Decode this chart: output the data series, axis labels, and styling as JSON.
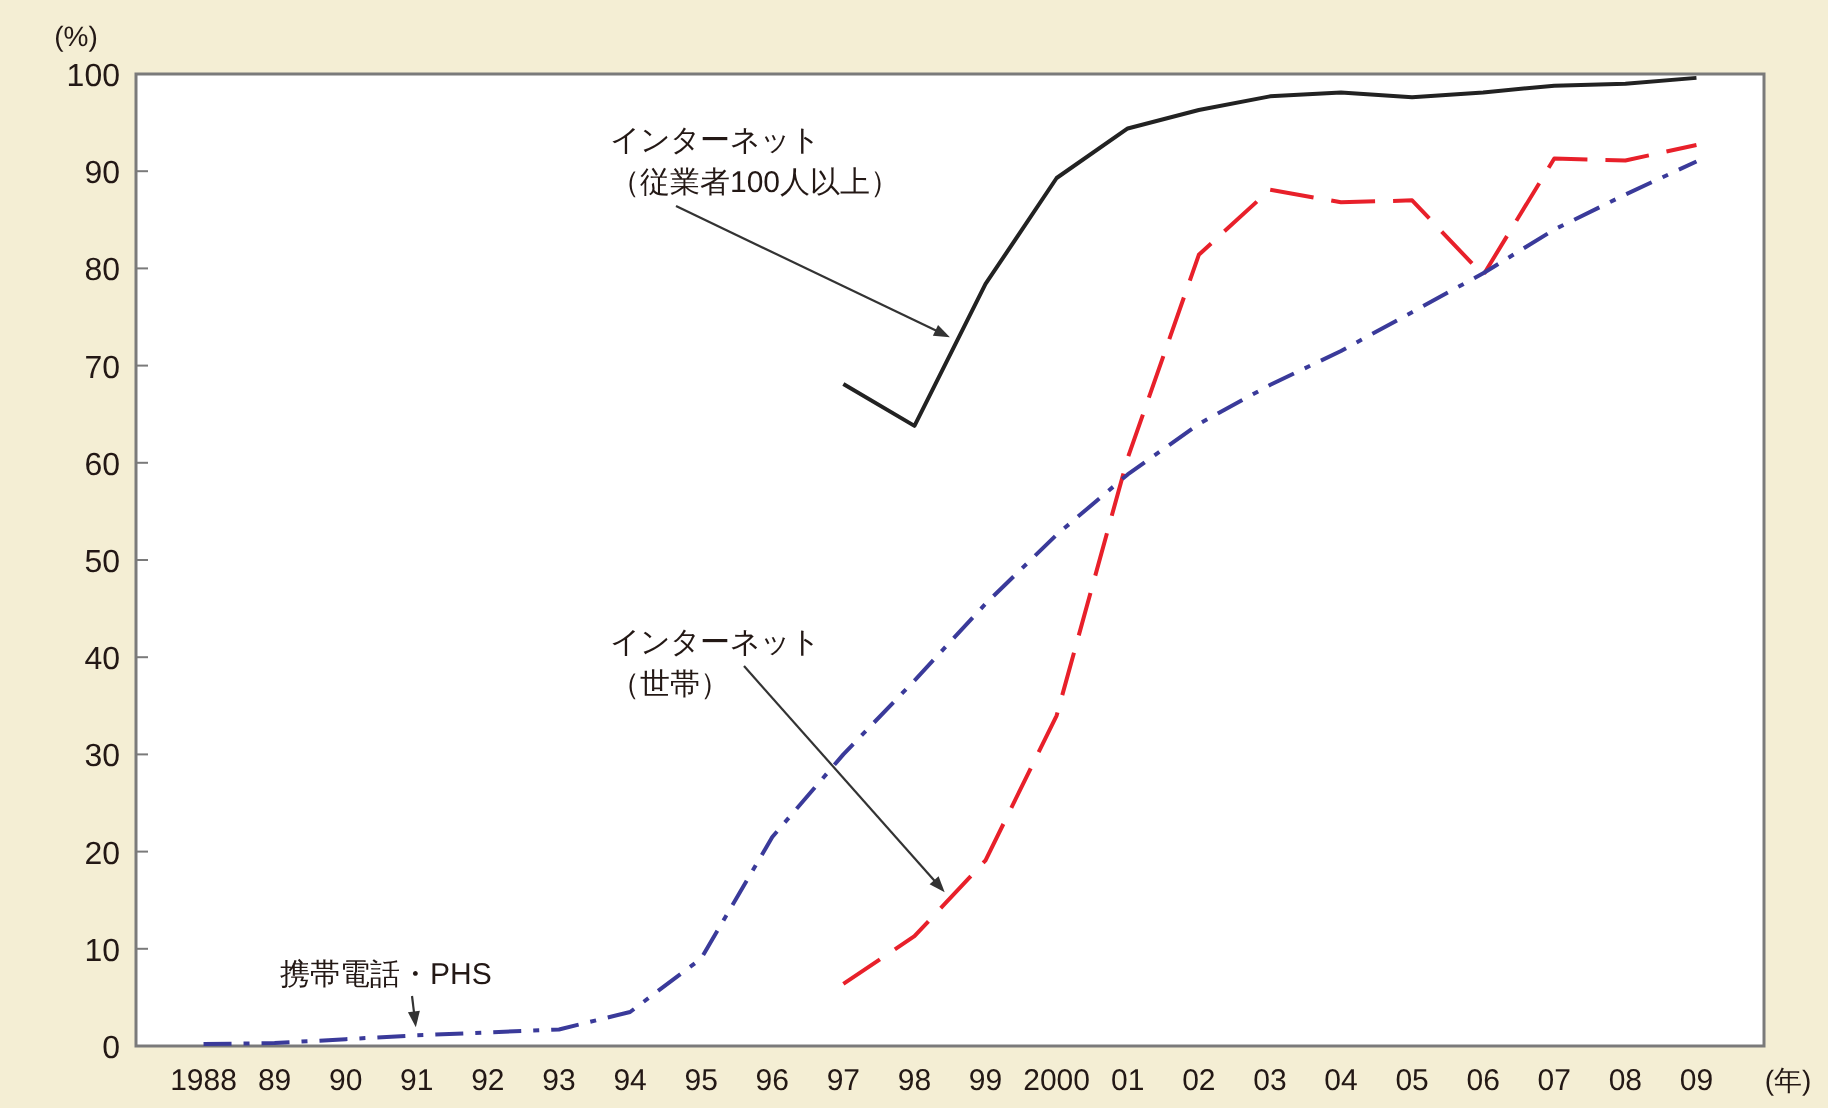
{
  "chart_data": {
    "type": "line",
    "ylabel": "(%)",
    "xlabel": "(年)",
    "categories": [
      "1988",
      "89",
      "90",
      "91",
      "92",
      "93",
      "94",
      "95",
      "96",
      "97",
      "98",
      "99",
      "2000",
      "01",
      "02",
      "03",
      "04",
      "05",
      "06",
      "07",
      "08",
      "09"
    ],
    "ylim": [
      0,
      100
    ],
    "yticks": [
      0,
      10,
      20,
      30,
      40,
      50,
      60,
      70,
      80,
      90,
      100
    ],
    "marker": "none",
    "series": [
      {
        "name": "インターネット（従業者100人以上）",
        "color": "#222222",
        "line_style": "solid",
        "values": [
          null,
          null,
          null,
          null,
          null,
          null,
          null,
          null,
          null,
          68.1,
          63.8,
          78.4,
          89.3,
          94.4,
          96.3,
          97.7,
          98.1,
          97.6,
          98.1,
          98.8,
          99.0,
          99.6
        ]
      },
      {
        "name": "インターネット（世帯）",
        "color": "#e8202a",
        "line_style": "dashed",
        "values": [
          null,
          null,
          null,
          null,
          null,
          null,
          null,
          null,
          null,
          6.4,
          11.3,
          19.1,
          34.0,
          60.5,
          81.4,
          88.1,
          86.8,
          87.0,
          79.3,
          91.3,
          91.1,
          92.7
        ]
      },
      {
        "name": "携帯電話・PHS",
        "color": "#3a3a9a",
        "line_style": "dashdot",
        "values": [
          0.2,
          0.3,
          0.7,
          1.1,
          1.4,
          1.7,
          3.5,
          9.0,
          21.5,
          30.0,
          37.6,
          45.5,
          52.6,
          58.8,
          64.0,
          68.0,
          71.5,
          75.5,
          79.5,
          84.0,
          87.6,
          91.0
        ]
      }
    ]
  }
}
